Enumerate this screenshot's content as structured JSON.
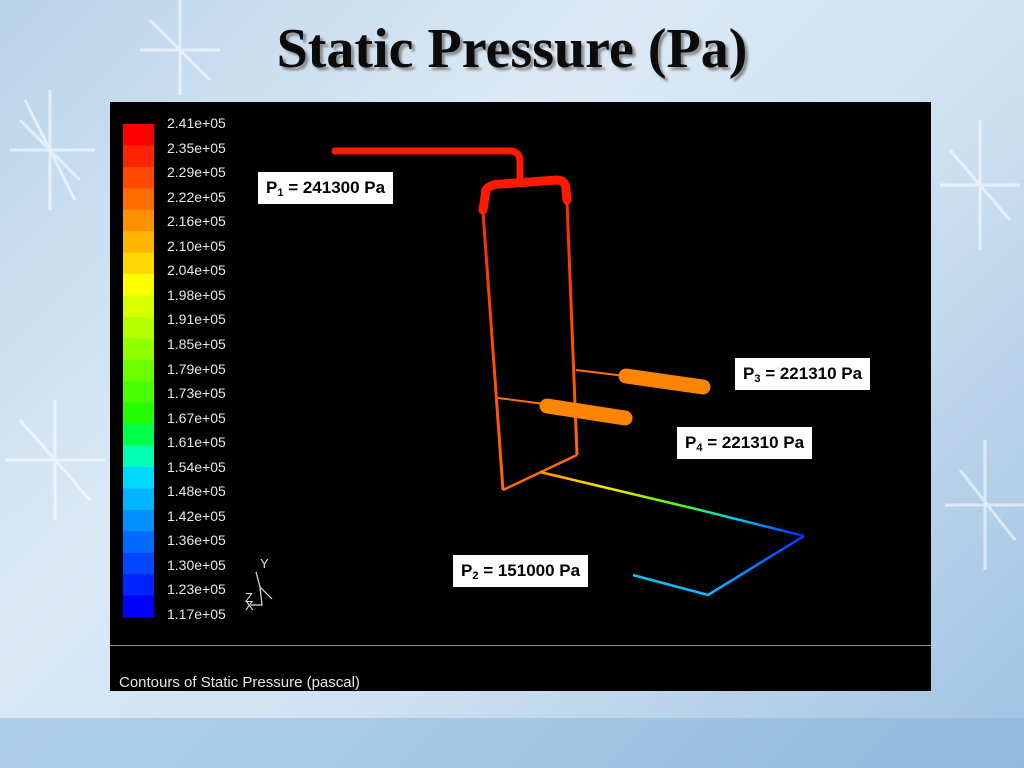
{
  "slide": {
    "title": "Static Pressure (Pa)"
  },
  "colorbar": {
    "labels": [
      "2.41e+05",
      "2.35e+05",
      "2.29e+05",
      "2.22e+05",
      "2.16e+05",
      "2.10e+05",
      "2.04e+05",
      "1.98e+05",
      "1.91e+05",
      "1.85e+05",
      "1.79e+05",
      "1.73e+05",
      "1.67e+05",
      "1.61e+05",
      "1.54e+05",
      "1.48e+05",
      "1.42e+05",
      "1.36e+05",
      "1.30e+05",
      "1.23e+05",
      "1.17e+05"
    ],
    "colors": [
      "#ff0000",
      "#ff2400",
      "#ff4800",
      "#ff6c00",
      "#ff9000",
      "#ffb400",
      "#ffd800",
      "#fcff00",
      "#d8ff00",
      "#b4ff00",
      "#90ff00",
      "#6cff00",
      "#48ff00",
      "#24ff00",
      "#00ff48",
      "#00ffb4",
      "#00d8ff",
      "#00b4ff",
      "#0090ff",
      "#006cff",
      "#0048ff",
      "#0024ff",
      "#0000ff"
    ]
  },
  "axes": {
    "y_label": "Y",
    "x_label": "X",
    "z_label": "Z"
  },
  "callouts": {
    "p1": {
      "symbol": "P",
      "sub": "1",
      "text": " = 241300 Pa"
    },
    "p2": {
      "symbol": "P",
      "sub": "2",
      "text": " = 151000 Pa"
    },
    "p3": {
      "symbol": "P",
      "sub": "3",
      "text": " = 221310 Pa"
    },
    "p4": {
      "symbol": "P",
      "sub": "4",
      "text": " = 221310 Pa"
    }
  },
  "footer": {
    "caption": "Contours of Static Pressure (pascal)"
  }
}
